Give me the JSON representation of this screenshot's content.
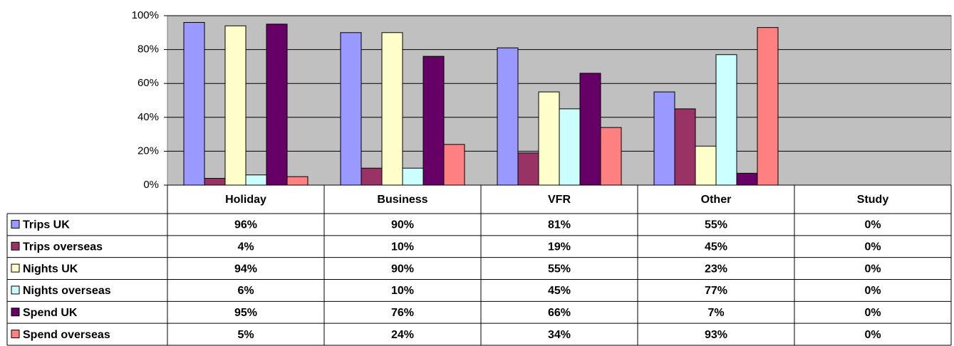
{
  "chart_data": {
    "type": "bar",
    "categories": [
      "Holiday",
      "Business",
      "VFR",
      "Other",
      "Study"
    ],
    "series": [
      {
        "name": "Trips UK",
        "color": "#9999ff",
        "values": [
          96,
          90,
          81,
          55,
          0
        ],
        "value_labels": [
          "96%",
          "90%",
          "81%",
          "55%",
          "0%"
        ]
      },
      {
        "name": "Trips overseas",
        "color": "#993366",
        "values": [
          4,
          10,
          19,
          45,
          0
        ],
        "value_labels": [
          "4%",
          "10%",
          "19%",
          "45%",
          "0%"
        ]
      },
      {
        "name": "Nights UK",
        "color": "#ffffcc",
        "values": [
          94,
          90,
          55,
          23,
          0
        ],
        "value_labels": [
          "94%",
          "90%",
          "55%",
          "23%",
          "0%"
        ]
      },
      {
        "name": "Nights overseas",
        "color": "#ccffff",
        "values": [
          6,
          10,
          45,
          77,
          0
        ],
        "value_labels": [
          "6%",
          "10%",
          "45%",
          "77%",
          "0%"
        ]
      },
      {
        "name": "Spend UK",
        "color": "#660066",
        "values": [
          95,
          76,
          66,
          7,
          0
        ],
        "value_labels": [
          "95%",
          "76%",
          "66%",
          "7%",
          "0%"
        ]
      },
      {
        "name": "Spend overseas",
        "color": "#ff8080",
        "values": [
          5,
          24,
          34,
          93,
          0
        ],
        "value_labels": [
          "5%",
          "24%",
          "34%",
          "93%",
          "0%"
        ]
      }
    ],
    "ylim": [
      0,
      100
    ],
    "yticks": [
      {
        "value": 0,
        "label": "0%"
      },
      {
        "value": 20,
        "label": "20%"
      },
      {
        "value": 40,
        "label": "40%"
      },
      {
        "value": 60,
        "label": "60%"
      },
      {
        "value": 80,
        "label": "80%"
      },
      {
        "value": 100,
        "label": "100%"
      }
    ],
    "grid": true,
    "plot_background": "#c0c0c0"
  }
}
